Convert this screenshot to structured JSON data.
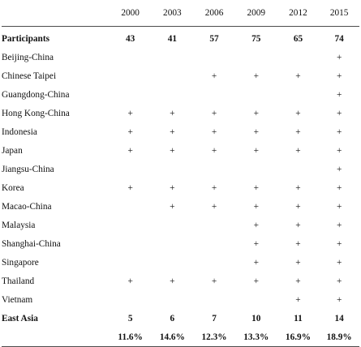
{
  "header": {
    "corner": "",
    "years": [
      "2000",
      "2003",
      "2006",
      "2009",
      "2012",
      "2015"
    ]
  },
  "participants": {
    "label": "Participants",
    "values": [
      "43",
      "41",
      "57",
      "75",
      "65",
      "74"
    ]
  },
  "plus_symbol": "+",
  "rows": [
    {
      "label": "Beijing-China",
      "marks": [
        "",
        "",
        "",
        "",
        "",
        "+"
      ]
    },
    {
      "label": "Chinese Taipei",
      "marks": [
        "",
        "",
        "+",
        "+",
        "+",
        "+"
      ]
    },
    {
      "label": "Guangdong-China",
      "marks": [
        "",
        "",
        "",
        "",
        "",
        "+"
      ]
    },
    {
      "label": "Hong Kong-China",
      "marks": [
        "+",
        "+",
        "+",
        "+",
        "+",
        "+"
      ]
    },
    {
      "label": "Indonesia",
      "marks": [
        "+",
        "+",
        "+",
        "+",
        "+",
        "+"
      ]
    },
    {
      "label": "Japan",
      "marks": [
        "+",
        "+",
        "+",
        "+",
        "+",
        "+"
      ]
    },
    {
      "label": "Jiangsu-China",
      "marks": [
        "",
        "",
        "",
        "",
        "",
        "+"
      ]
    },
    {
      "label": "Korea",
      "marks": [
        "+",
        "+",
        "+",
        "+",
        "+",
        "+"
      ]
    },
    {
      "label": "Macao-China",
      "marks": [
        "",
        "+",
        "+",
        "+",
        "+",
        "+"
      ]
    },
    {
      "label": "Malaysia",
      "marks": [
        "",
        "",
        "",
        "+",
        "+",
        "+"
      ]
    },
    {
      "label": "Shanghai-China",
      "marks": [
        "",
        "",
        "",
        "+",
        "+",
        "+"
      ]
    },
    {
      "label": "Singapore",
      "marks": [
        "",
        "",
        "",
        "+",
        "+",
        "+"
      ]
    },
    {
      "label": "Thailand",
      "marks": [
        "+",
        "+",
        "+",
        "+",
        "+",
        "+"
      ]
    },
    {
      "label": "Vietnam",
      "marks": [
        "",
        "",
        "",
        "",
        "+",
        "+"
      ]
    }
  ],
  "east_asia": {
    "label": "East Asia",
    "values": [
      "5",
      "6",
      "7",
      "10",
      "11",
      "14"
    ],
    "shares": [
      "11.6%",
      "14.6%",
      "12.3%",
      "13.3%",
      "16.9%",
      "18.9%"
    ]
  }
}
